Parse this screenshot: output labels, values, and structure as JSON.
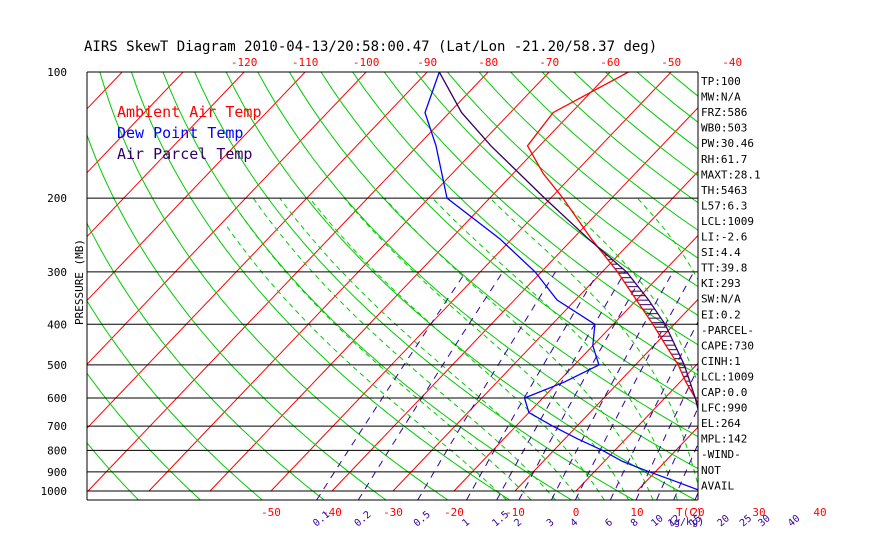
{
  "title": "AIRS SkewT Diagram 2010-04-13/20:58:00.47 (Lat/Lon -21.20/58.37 deg)",
  "colors": {
    "ambient": "#ff0000",
    "dewpoint": "#0000ff",
    "parcel": "#330066",
    "isotherm": "#ff0000",
    "dry_adiabat": "#00cc00",
    "moist_adiabat": "#00cc00",
    "mixing_ratio": "#330099",
    "hatch": "#330066",
    "isobar": "#000000"
  },
  "legend": [
    "Ambient Air Temp",
    "Dew Point Temp",
    "Air Parcel Temp"
  ],
  "chart_data": {
    "type": "line",
    "title": "AIRS SkewT Diagram 2010-04-13/20:58:00.47 (Lat/Lon -21.20/58.37 deg)",
    "ylabel": "PRESSURE (MB)",
    "xlabel": "T(C)",
    "ylim": [
      1000,
      100
    ],
    "y_scale": "log",
    "pressure_ticks": [
      "100",
      "200",
      "300",
      "400",
      "500",
      "600",
      "700",
      "800",
      "900",
      "1000"
    ],
    "top_temp_ticks": [
      "-120",
      "-110",
      "-100",
      "-90",
      "-80",
      "-70",
      "-60",
      "-50",
      "-40"
    ],
    "bottom_temp_ticks": [
      "-50",
      "-40",
      "-30",
      "-20",
      "-10",
      "0",
      "10",
      "20",
      "30",
      "40"
    ],
    "mixing_ratio_ticks": [
      "0.1",
      "0.2",
      "0.5",
      "1",
      "1.5",
      "2",
      "3",
      "4",
      "6",
      "8",
      "10",
      "12",
      "15",
      "20",
      "25",
      "30",
      "40"
    ],
    "mixing_ratio_unit": "g/kg",
    "series": [
      {
        "name": "Ambient Air Temp",
        "points": [
          [
            1000,
            22.0
          ],
          [
            950,
            19.5
          ],
          [
            900,
            17.5
          ],
          [
            850,
            18.5
          ],
          [
            800,
            16.5
          ],
          [
            750,
            14.5
          ],
          [
            700,
            12.0
          ],
          [
            650,
            8.5
          ],
          [
            600,
            5.0
          ],
          [
            550,
            1.0
          ],
          [
            500,
            -3.0
          ],
          [
            450,
            -8.0
          ],
          [
            400,
            -13.5
          ],
          [
            350,
            -20.0
          ],
          [
            300,
            -27.5
          ],
          [
            250,
            -37.0
          ],
          [
            200,
            -48.0
          ],
          [
            175,
            -55.0
          ],
          [
            150,
            -62.0
          ],
          [
            125,
            -63.0
          ],
          [
            100,
            -57.0
          ]
        ]
      },
      {
        "name": "Dew Point Temp",
        "points": [
          [
            1000,
            20.5
          ],
          [
            950,
            15.0
          ],
          [
            900,
            9.0
          ],
          [
            850,
            3.0
          ],
          [
            800,
            -2.0
          ],
          [
            750,
            -8.0
          ],
          [
            700,
            -14.0
          ],
          [
            650,
            -20.0
          ],
          [
            600,
            -23.0
          ],
          [
            550,
            -19.0
          ],
          [
            500,
            -16.0
          ],
          [
            450,
            -20.0
          ],
          [
            400,
            -23.0
          ],
          [
            350,
            -33.0
          ],
          [
            300,
            -41.0
          ],
          [
            250,
            -52.0
          ],
          [
            200,
            -67.0
          ],
          [
            150,
            -77.0
          ],
          [
            125,
            -84.0
          ],
          [
            100,
            -88.0
          ]
        ]
      },
      {
        "name": "Air Parcel Temp",
        "points": [
          [
            1000,
            22.0
          ],
          [
            900,
            19.0
          ],
          [
            800,
            15.0
          ],
          [
            700,
            10.5
          ],
          [
            600,
            5.0
          ],
          [
            500,
            -2.0
          ],
          [
            400,
            -11.5
          ],
          [
            350,
            -18.0
          ],
          [
            300,
            -26.0
          ],
          [
            250,
            -37.5
          ],
          [
            200,
            -51.0
          ],
          [
            150,
            -68.0
          ],
          [
            125,
            -78.0
          ],
          [
            100,
            -88.0
          ]
        ]
      }
    ]
  },
  "indices": [
    "TP:100",
    "MW:N/A",
    "FRZ:586",
    "WB0:503",
    "PW:30.46",
    "RH:61.7",
    "MAXT:28.1",
    "TH:5463",
    "L57:6.3",
    "LCL:1009",
    "LI:-2.6",
    "SI:4.4",
    "TT:39.8",
    "KI:293",
    "SW:N/A",
    "EI:0.2",
    "-PARCEL-",
    "CAPE:730",
    "CINH:1",
    "LCL:1009",
    "CAP:0.0",
    "LFC:990",
    "EL:264",
    "MPL:142",
    "-WIND-",
    "NOT",
    "AVAIL"
  ]
}
